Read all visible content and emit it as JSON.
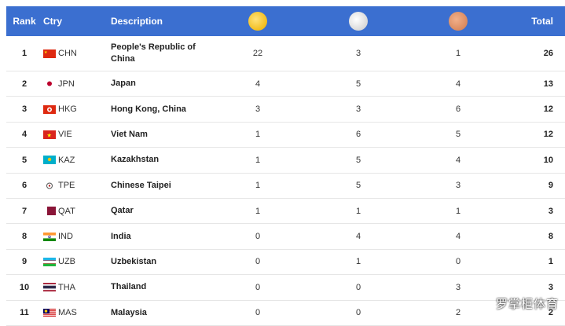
{
  "header": {
    "rank": "Rank",
    "ctry": "Ctry",
    "description": "Description",
    "gold_icon": "gold-medal-icon",
    "silver_icon": "silver-medal-icon",
    "bronze_icon": "bronze-medal-icon",
    "total": "Total"
  },
  "rows": [
    {
      "rank": "1",
      "code": "CHN",
      "description": "People's Republic of China",
      "gold": "22",
      "silver": "3",
      "bronze": "1",
      "total": "26",
      "flag_icon": "china-flag-icon"
    },
    {
      "rank": "2",
      "code": "JPN",
      "description": "Japan",
      "gold": "4",
      "silver": "5",
      "bronze": "4",
      "total": "13",
      "flag_icon": "japan-flag-icon"
    },
    {
      "rank": "3",
      "code": "HKG",
      "description": "Hong Kong, China",
      "gold": "3",
      "silver": "3",
      "bronze": "6",
      "total": "12",
      "flag_icon": "hong-kong-flag-icon"
    },
    {
      "rank": "4",
      "code": "VIE",
      "description": "Viet Nam",
      "gold": "1",
      "silver": "6",
      "bronze": "5",
      "total": "12",
      "flag_icon": "vietnam-flag-icon"
    },
    {
      "rank": "5",
      "code": "KAZ",
      "description": "Kazakhstan",
      "gold": "1",
      "silver": "5",
      "bronze": "4",
      "total": "10",
      "flag_icon": "kazakhstan-flag-icon"
    },
    {
      "rank": "6",
      "code": "TPE",
      "description": "Chinese Taipei",
      "gold": "1",
      "silver": "5",
      "bronze": "3",
      "total": "9",
      "flag_icon": "chinese-taipei-flag-icon"
    },
    {
      "rank": "7",
      "code": "QAT",
      "description": "Qatar",
      "gold": "1",
      "silver": "1",
      "bronze": "1",
      "total": "3",
      "flag_icon": "qatar-flag-icon"
    },
    {
      "rank": "8",
      "code": "IND",
      "description": "India",
      "gold": "0",
      "silver": "4",
      "bronze": "4",
      "total": "8",
      "flag_icon": "india-flag-icon"
    },
    {
      "rank": "9",
      "code": "UZB",
      "description": "Uzbekistan",
      "gold": "0",
      "silver": "1",
      "bronze": "0",
      "total": "1",
      "flag_icon": "uzbekistan-flag-icon"
    },
    {
      "rank": "10",
      "code": "THA",
      "description": "Thailand",
      "gold": "0",
      "silver": "0",
      "bronze": "3",
      "total": "3",
      "flag_icon": "thailand-flag-icon"
    },
    {
      "rank": "11",
      "code": "MAS",
      "description": "Malaysia",
      "gold": "0",
      "silver": "0",
      "bronze": "2",
      "total": "2",
      "flag_icon": "malaysia-flag-icon"
    }
  ],
  "watermark": "罗掌柜体育",
  "colors": {
    "header_bg": "#3b6fd0",
    "gold": "#f2bd1d",
    "silver": "#d6d6d6",
    "bronze": "#d8875c"
  }
}
